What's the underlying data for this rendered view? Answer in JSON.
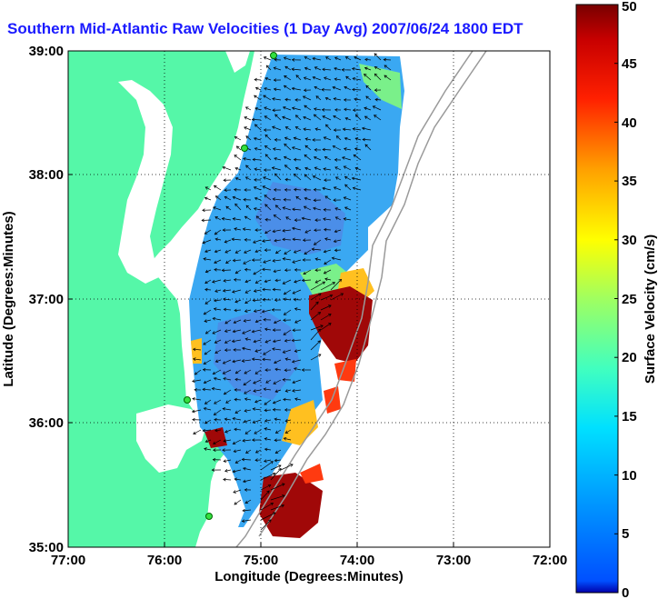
{
  "title": "Southern Mid-Atlantic Raw Velocities (1 Day Avg) 2007/06/24 1800 EDT",
  "xlabel": "Longitude (Degrees:Minutes)",
  "ylabel": "Latitude (Degrees:Minutes)",
  "colorbar_label": "Surface Velocity (cm/s)",
  "x_ticks": [
    "77:00",
    "76:00",
    "75:00",
    "74:00",
    "73:00",
    "72:00"
  ],
  "y_ticks": [
    "39:00",
    "38:00",
    "37:00",
    "36:00",
    "35:00"
  ],
  "colorbar_ticks": [
    "0",
    "5",
    "10",
    "15",
    "20",
    "25",
    "30",
    "35",
    "40",
    "45",
    "50"
  ],
  "colors": {
    "land": "#55f7a8",
    "title": "#1a1aff",
    "bathymetry": "#9a9a9a"
  },
  "chart_data": {
    "type": "heatmap",
    "title": "Southern Mid-Atlantic Raw Velocities (1 Day Avg) 2007/06/24 1800 EDT",
    "xlabel": "Longitude (Degrees:Minutes)",
    "ylabel": "Latitude (Degrees:Minutes)",
    "xlim": [
      -77,
      -72
    ],
    "ylim": [
      35,
      39
    ],
    "colorbar": {
      "label": "Surface Velocity (cm/s)",
      "range": [
        0,
        50
      ],
      "colormap": "jet"
    },
    "grid": true
  }
}
